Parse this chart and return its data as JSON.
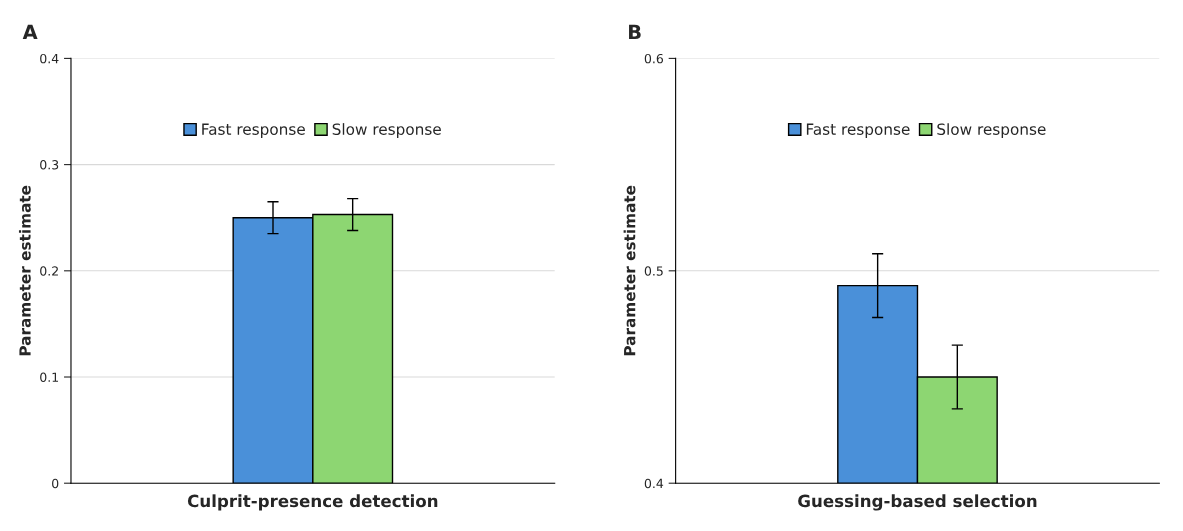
{
  "chart_data": [
    {
      "type": "bar",
      "title": "A",
      "ylabel": "Parameter estimate",
      "categories": [
        "Culprit-presence detection"
      ],
      "series": [
        {
          "name": "Fast response",
          "color": "#4a90d9",
          "values": [
            0.25
          ],
          "errors": [
            0.015
          ]
        },
        {
          "name": "Slow response",
          "color": "#8dd672",
          "values": [
            0.253
          ],
          "errors": [
            0.015
          ]
        }
      ],
      "ylim": [
        0,
        0.4
      ],
      "yticks": [
        0,
        0.1,
        0.2,
        0.3,
        0.4
      ],
      "grid": "y",
      "legend": "top"
    },
    {
      "type": "bar",
      "title": "B",
      "ylabel": "Parameter estimate",
      "categories": [
        "Guessing-based selection"
      ],
      "series": [
        {
          "name": "Fast response",
          "color": "#4a90d9",
          "values": [
            0.493
          ],
          "errors": [
            0.015
          ]
        },
        {
          "name": "Slow response",
          "color": "#8dd672",
          "values": [
            0.45
          ],
          "errors": [
            0.015
          ]
        }
      ],
      "ylim": [
        0.4,
        0.6
      ],
      "yticks": [
        0.4,
        0.5,
        0.6
      ],
      "grid": "y",
      "legend": "top"
    }
  ]
}
